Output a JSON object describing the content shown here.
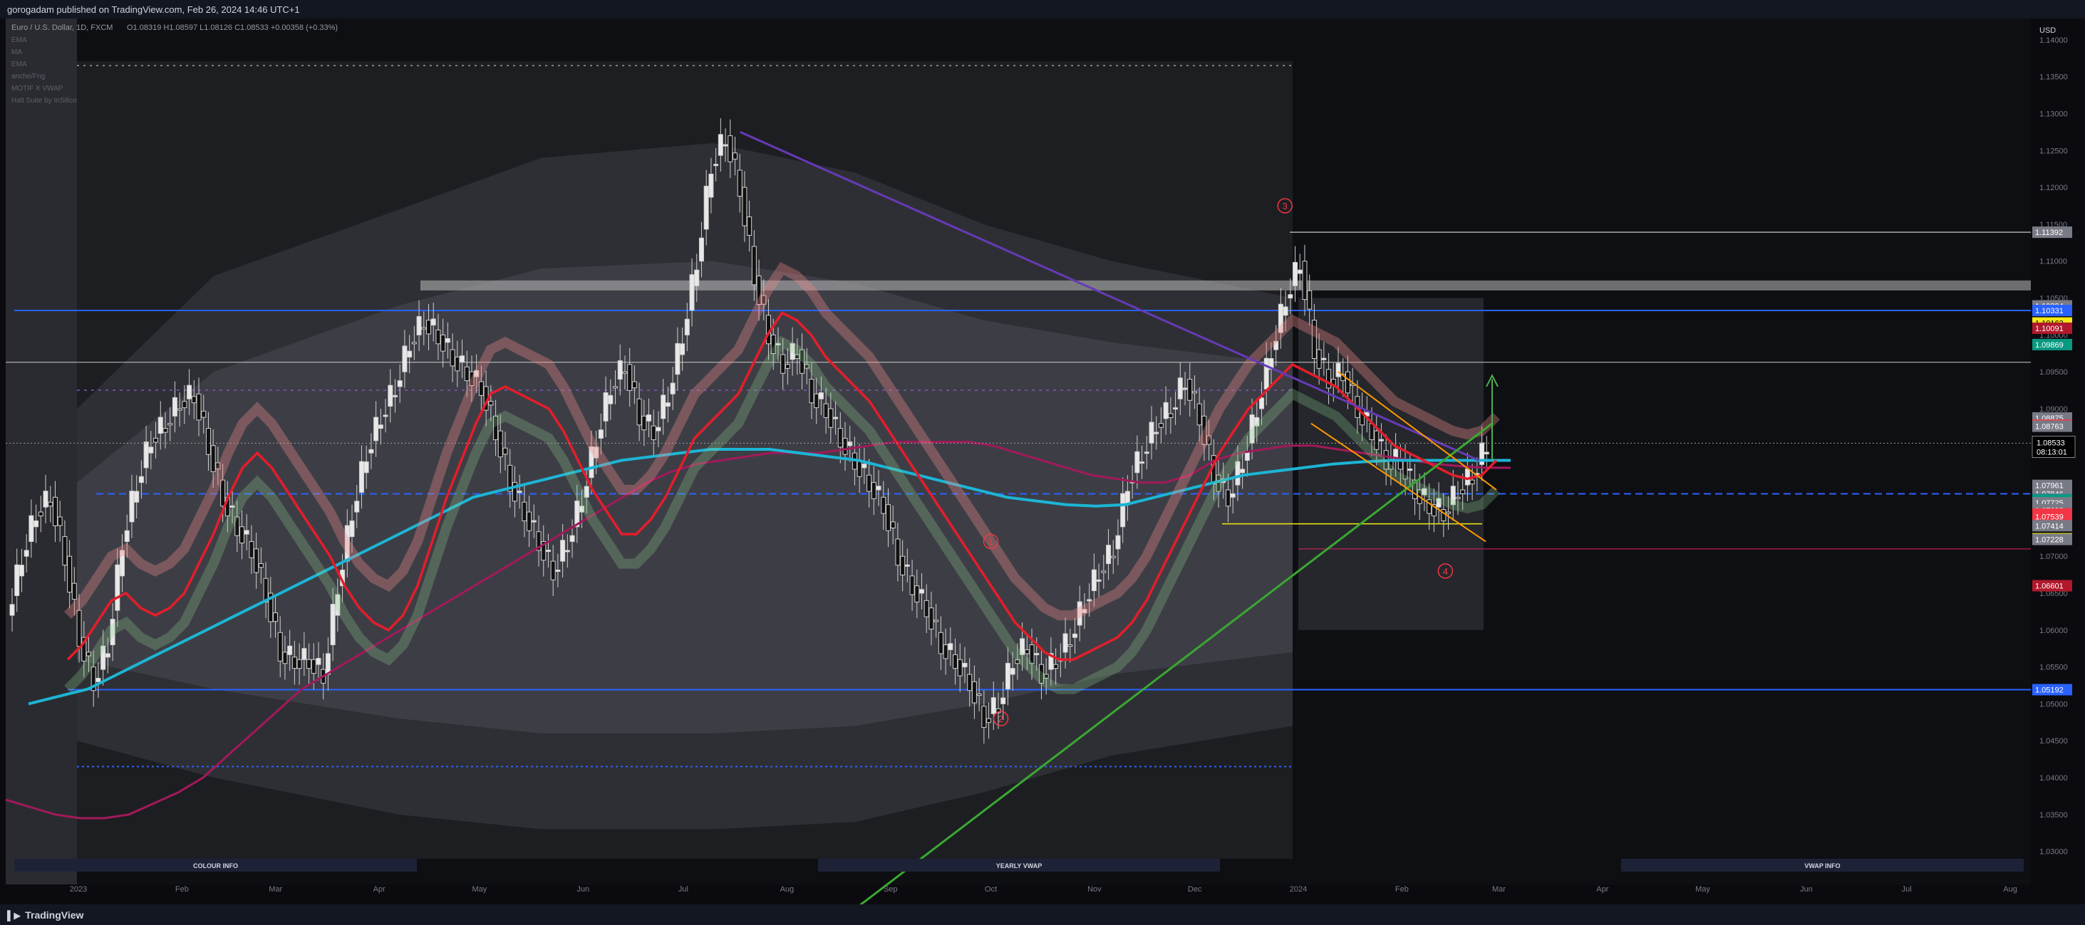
{
  "header": {
    "published": "gorogadam published on TradingView.com, Feb 26, 2024 14:46 UTC+1",
    "symbol_line": "Euro / U.S. Dollar, 1D, FXCM",
    "ohlc": "O1.08319  H1.08597  L1.08126  C1.08533  +0.00358 (+0.33%)"
  },
  "indicators": [
    "EMA",
    "MA",
    "EMA",
    "anche/Fng",
    "MOTIF X VWAP",
    "Halt Suite by InSilico"
  ],
  "currency_label": "USD",
  "brand": "TradingView",
  "panels": [
    {
      "label": "COLOUR INFO",
      "x0": 20,
      "x1": 585
    },
    {
      "label": "YEARLY VWAP",
      "x0": 1148,
      "x1": 1712
    },
    {
      "label": "VWAP INFO",
      "x0": 2275,
      "x1": 2840
    }
  ],
  "colors": {
    "background": "#0b0b0f",
    "panel": "#131722",
    "up": "#e8e8e8",
    "down": "#111111",
    "ema_fast": "#e51d2a",
    "ema_slow": "#a3195b",
    "ma": "#1cb5d5",
    "trend_purple": "#673ab7",
    "trend_green": "#3aa832",
    "blue_level": "#2962ff"
  },
  "chart_data": {
    "type": "candlestick",
    "instrument": "EURUSD",
    "timeframe": "1D",
    "x_ticks": [
      "2023",
      "Feb",
      "Mar",
      "Apr",
      "May",
      "Jun",
      "Jul",
      "Aug",
      "Sep",
      "Oct",
      "Nov",
      "Dec",
      "2024",
      "Feb",
      "Mar",
      "Apr",
      "May",
      "Jun",
      "Jul",
      "Aug"
    ],
    "y_ticks": [
      "1.14000",
      "1.13500",
      "1.13000",
      "1.12500",
      "1.12000",
      "1.11500",
      "1.11000",
      "1.10500",
      "1.10000",
      "1.09500",
      "1.09000",
      "1.08500",
      "1.08000",
      "1.07500",
      "1.07000",
      "1.06500",
      "1.06000",
      "1.05500",
      "1.05000",
      "1.04500",
      "1.04000",
      "1.03500",
      "1.03000"
    ],
    "ylim": [
      1.029,
      1.1425
    ],
    "price_path": [
      1.062,
      1.07,
      1.076,
      1.078,
      1.07,
      1.059,
      1.053,
      1.058,
      1.072,
      1.08,
      1.086,
      1.088,
      1.091,
      1.092,
      1.085,
      1.078,
      1.074,
      1.071,
      1.065,
      1.057,
      1.056,
      1.056,
      1.054,
      1.066,
      1.076,
      1.084,
      1.089,
      1.093,
      1.099,
      1.102,
      1.1,
      1.097,
      1.095,
      1.093,
      1.087,
      1.08,
      1.076,
      1.072,
      1.068,
      1.072,
      1.078,
      1.086,
      1.093,
      1.096,
      1.089,
      1.087,
      1.092,
      1.1,
      1.11,
      1.123,
      1.127,
      1.12,
      1.108,
      1.1,
      1.096,
      1.098,
      1.092,
      1.09,
      1.086,
      1.083,
      1.08,
      1.077,
      1.07,
      1.066,
      1.063,
      1.058,
      1.056,
      1.053,
      1.048,
      1.05,
      1.056,
      1.058,
      1.054,
      1.056,
      1.059,
      1.064,
      1.068,
      1.071,
      1.08,
      1.084,
      1.088,
      1.09,
      1.094,
      1.089,
      1.081,
      1.078,
      1.083,
      1.09,
      1.098,
      1.105,
      1.11,
      1.098,
      1.094,
      1.095,
      1.09,
      1.087,
      1.083,
      1.083,
      1.079,
      1.077,
      1.076,
      1.079,
      1.081,
      1.0853
    ],
    "ema_fast": [
      1.056,
      1.058,
      1.061,
      1.064,
      1.065,
      1.063,
      1.062,
      1.063,
      1.065,
      1.069,
      1.073,
      1.078,
      1.082,
      1.084,
      1.082,
      1.079,
      1.076,
      1.073,
      1.07,
      1.066,
      1.063,
      1.061,
      1.06,
      1.062,
      1.066,
      1.072,
      1.078,
      1.083,
      1.088,
      1.092,
      1.093,
      1.092,
      1.091,
      1.09,
      1.087,
      1.083,
      1.079,
      1.076,
      1.073,
      1.073,
      1.075,
      1.078,
      1.082,
      1.086,
      1.088,
      1.09,
      1.092,
      1.096,
      1.1,
      1.103,
      1.102,
      1.1,
      1.097,
      1.095,
      1.093,
      1.091,
      1.088,
      1.085,
      1.082,
      1.079,
      1.076,
      1.073,
      1.07,
      1.067,
      1.064,
      1.061,
      1.059,
      1.057,
      1.056,
      1.056,
      1.057,
      1.058,
      1.059,
      1.061,
      1.064,
      1.068,
      1.072,
      1.076,
      1.08,
      1.084,
      1.087,
      1.09,
      1.092,
      1.094,
      1.096,
      1.095,
      1.094,
      1.093,
      1.091,
      1.089,
      1.087,
      1.085,
      1.084,
      1.083,
      1.082,
      1.081,
      1.0805,
      1.081,
      1.083
    ],
    "ema_slow": [
      1.037,
      1.036,
      1.035,
      1.0345,
      1.0345,
      1.035,
      1.0365,
      1.038,
      1.04,
      1.043,
      1.046,
      1.049,
      1.052,
      1.054,
      1.056,
      1.058,
      1.06,
      1.062,
      1.064,
      1.066,
      1.068,
      1.07,
      1.072,
      1.074,
      1.076,
      1.078,
      1.08,
      1.0815,
      1.0825,
      1.083,
      1.0835,
      1.084,
      1.084,
      1.084,
      1.0845,
      1.085,
      1.0855,
      1.0855,
      1.0855,
      1.0855,
      1.085,
      1.084,
      1.083,
      1.082,
      1.081,
      1.0805,
      1.08,
      1.08,
      1.081,
      1.083,
      1.084,
      1.0845,
      1.085,
      1.085,
      1.0845,
      1.084,
      1.0835,
      1.083,
      1.0825,
      1.0822,
      1.082,
      1.082
    ],
    "ma": [
      1.05,
      1.051,
      1.052,
      1.054,
      1.056,
      1.058,
      1.06,
      1.062,
      1.064,
      1.066,
      1.068,
      1.07,
      1.072,
      1.074,
      1.076,
      1.078,
      1.079,
      1.08,
      1.081,
      1.082,
      1.083,
      1.0835,
      1.084,
      1.0845,
      1.0845,
      1.0845,
      1.084,
      1.0835,
      1.083,
      1.082,
      1.081,
      1.08,
      1.079,
      1.078,
      1.0775,
      1.077,
      1.0768,
      1.077,
      1.078,
      1.079,
      1.08,
      1.081,
      1.0815,
      1.082,
      1.0825,
      1.0828,
      1.083,
      1.083,
      1.083,
      1.083,
      1.083
    ],
    "levels": [
      {
        "label": "1.11392",
        "value": 1.11392,
        "color": "#787b86"
      },
      {
        "label": "1.10394",
        "value": 1.10394,
        "color": "#787b86"
      },
      {
        "label": "1.10331",
        "value": 1.10331,
        "color": "#2962ff"
      },
      {
        "label": "1.10162",
        "value": 1.10162,
        "color": "#f5e915"
      },
      {
        "label": "1.10091",
        "value": 1.10091,
        "color": "#b2182b"
      },
      {
        "label": "1.09869",
        "value": 1.09869,
        "color": "#089981"
      },
      {
        "label": "1.08875",
        "value": 1.08875,
        "color": "#787b86"
      },
      {
        "label": "1.08777",
        "value": 1.08777,
        "color": "#f23645"
      },
      {
        "label": "1.08763",
        "value": 1.08763,
        "color": "#787b86"
      },
      {
        "label": "1.08540",
        "value": 1.0854,
        "color": "#089981"
      },
      {
        "label": "1.08528",
        "value": 1.08528,
        "color": "#787b86"
      },
      {
        "label": "1.07961",
        "value": 1.07961,
        "color": "#787b86"
      },
      {
        "label": "1.07846",
        "value": 1.07846,
        "color": "#787b86"
      },
      {
        "label": "1.07773",
        "value": 1.07773,
        "color": "#2962ff"
      },
      {
        "label": "1.07771",
        "value": 1.07771,
        "color": "#787b86"
      },
      {
        "label": "1.07766",
        "value": 1.07766,
        "color": "#089981"
      },
      {
        "label": "1.07725",
        "value": 1.07725,
        "color": "#787b86"
      },
      {
        "label": "1.07631",
        "value": 1.07631,
        "color": "#787b86"
      },
      {
        "label": "1.07622",
        "value": 1.07622,
        "color": "#787b86"
      },
      {
        "label": "1.07573",
        "value": 1.07573,
        "color": "#f23645"
      },
      {
        "label": "1.07539",
        "value": 1.07539,
        "color": "#f23645"
      },
      {
        "label": "1.07414",
        "value": 1.07414,
        "color": "#787b86"
      },
      {
        "label": "1.07238",
        "value": 1.07238,
        "color": "#f5e915"
      },
      {
        "label": "1.07228",
        "value": 1.07228,
        "color": "#787b86"
      },
      {
        "label": "1.06601",
        "value": 1.06601,
        "color": "#b2182b"
      },
      {
        "label": "1.05192",
        "value": 1.05192,
        "color": "#2962ff"
      }
    ],
    "current_price": {
      "label": "1.08533",
      "countdown": "08:13:01",
      "value": 1.08533
    },
    "wave_labels": [
      {
        "label": "1",
        "x": "2023-10-01",
        "price": 1.072
      },
      {
        "label": "2",
        "x": "2023-10-04",
        "price": 1.048
      },
      {
        "label": "3",
        "x": "2023-12-28",
        "price": 1.1175
      },
      {
        "label": "4",
        "x": "2024-02-14",
        "price": 1.068
      }
    ],
    "trendlines": [
      {
        "name": "",
        "color": "#673ab7",
        "from": [
          "2023-07-18",
          1.1275
        ],
        "to": [
          "2024-02-24",
          1.083
        ]
      },
      {
        "name": "",
        "color": "#3aa832",
        "from": [
          "2023-08-15",
          1.02
        ],
        "to": [
          "2024-02-28",
          1.088
        ]
      }
    ]
  }
}
